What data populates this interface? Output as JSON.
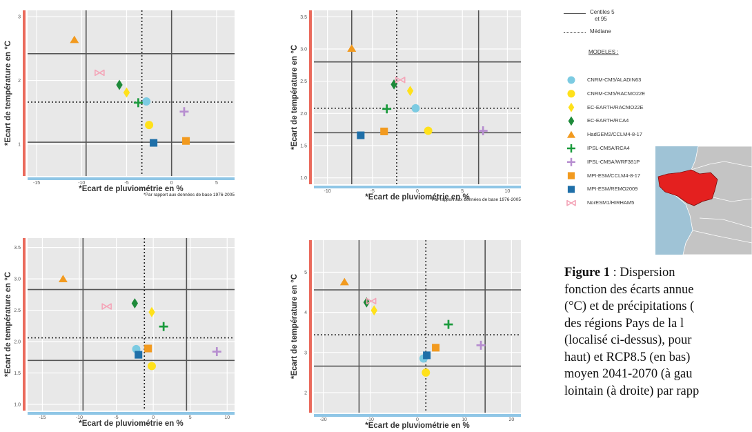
{
  "chart_data": [
    {
      "type": "scatter",
      "panel": "top-left",
      "xlabel": "*Ecart de pluviométrie en %",
      "ylabel": "*Ecart de température en °C",
      "footnote": "*Par rapport aux données de base 1976-2005",
      "xlim": [
        -16,
        7
      ],
      "ylim": [
        0.5,
        3.1
      ],
      "xticks": [
        "-15",
        "-10",
        "-5",
        "0",
        "5"
      ],
      "xtick_values": [
        -15,
        -10,
        -5,
        0,
        5
      ],
      "yticks": [
        "1",
        "2",
        "3"
      ],
      "ytick_values": [
        1,
        2,
        3
      ],
      "percentile_x": [
        -9.5,
        0
      ],
      "percentile_y": [
        1.03,
        2.42
      ],
      "median_x": -3.3,
      "median_y": 1.66,
      "points": [
        {
          "model": "CNRM-CM5/ALADIN63",
          "x": -2.8,
          "y": 1.67
        },
        {
          "model": "CNRM-CM5/RACMO22E",
          "x": -2.5,
          "y": 1.3
        },
        {
          "model": "EC-EARTH/RACMO22E",
          "x": -5.0,
          "y": 1.81
        },
        {
          "model": "EC-EARTH/RCA4",
          "x": -5.8,
          "y": 1.93
        },
        {
          "model": "HadGEM2/CCLM4-8-17",
          "x": -10.8,
          "y": 2.64
        },
        {
          "model": "IPSL-CM5A/RCA4",
          "x": -3.7,
          "y": 1.65
        },
        {
          "model": "IPSL-CM5A/WRF381P",
          "x": 1.4,
          "y": 1.51
        },
        {
          "model": "MPI-ESM/CCLM4-8-17",
          "x": 1.6,
          "y": 1.05
        },
        {
          "model": "MPI-ESM/REMO2009",
          "x": -2.0,
          "y": 1.02
        },
        {
          "model": "NorESM1/HIRHAM5",
          "x": -8.0,
          "y": 2.12
        }
      ]
    },
    {
      "type": "scatter",
      "panel": "top-right",
      "xlabel": "*Ecart de pluviométrie en %",
      "ylabel": "*Ecart de température en °C",
      "footnote": "*Par rapport aux données de base 1976-2005",
      "xlim": [
        -11.5,
        11.5
      ],
      "ylim": [
        0.9,
        3.6
      ],
      "xticks": [
        "-10",
        "-5",
        "0",
        "5",
        "10"
      ],
      "xtick_values": [
        -10,
        -5,
        0,
        5,
        10
      ],
      "yticks": [
        "1.0",
        "1.5",
        "2.0",
        "2.5",
        "3.0",
        "3.5"
      ],
      "ytick_values": [
        1.0,
        1.5,
        2.0,
        2.5,
        3.0,
        3.5
      ],
      "percentile_x": [
        -7.3,
        6.8
      ],
      "percentile_y": [
        1.7,
        2.8
      ],
      "median_x": -2.3,
      "median_y": 2.08,
      "points": [
        {
          "model": "CNRM-CM5/ALADIN63",
          "x": -0.2,
          "y": 2.08
        },
        {
          "model": "CNRM-CM5/RACMO22E",
          "x": 1.2,
          "y": 1.73
        },
        {
          "model": "EC-EARTH/RACMO22E",
          "x": -0.8,
          "y": 2.35
        },
        {
          "model": "EC-EARTH/RCA4",
          "x": -2.6,
          "y": 2.45
        },
        {
          "model": "HadGEM2/CCLM4-8-17",
          "x": -7.3,
          "y": 3.01
        },
        {
          "model": "IPSL-CM5A/RCA4",
          "x": -3.4,
          "y": 2.07
        },
        {
          "model": "IPSL-CM5A/WRF381P",
          "x": 7.3,
          "y": 1.73
        },
        {
          "model": "MPI-ESM/CCLM4-8-17",
          "x": -3.7,
          "y": 1.72
        },
        {
          "model": "MPI-ESM/REMO2009",
          "x": -6.3,
          "y": 1.66
        },
        {
          "model": "NorESM1/HIRHAM5",
          "x": -1.9,
          "y": 2.52
        }
      ]
    },
    {
      "type": "scatter",
      "panel": "bottom-left",
      "xlabel": "*Ecart de pluviométrie en %",
      "ylabel": "*Ecart de température en °C",
      "xlim": [
        -17,
        11
      ],
      "ylim": [
        0.9,
        3.65
      ],
      "xticks": [
        "-15",
        "-10",
        "-5",
        "0",
        "5",
        "10"
      ],
      "xtick_values": [
        -15,
        -10,
        -5,
        0,
        5,
        10
      ],
      "yticks": [
        "1.0",
        "1.5",
        "2.0",
        "2.5",
        "3.0",
        "3.5"
      ],
      "ytick_values": [
        1.0,
        1.5,
        2.0,
        2.5,
        3.0,
        3.5
      ],
      "percentile_x": [
        -9.5,
        4.5
      ],
      "percentile_y": [
        1.7,
        2.83
      ],
      "median_x": -1.2,
      "median_y": 2.06,
      "points": [
        {
          "model": "CNRM-CM5/ALADIN63",
          "x": -2.3,
          "y": 1.88
        },
        {
          "model": "CNRM-CM5/RACMO22E",
          "x": -0.2,
          "y": 1.61
        },
        {
          "model": "EC-EARTH/RACMO22E",
          "x": -0.2,
          "y": 2.47
        },
        {
          "model": "EC-EARTH/RCA4",
          "x": -2.5,
          "y": 2.61
        },
        {
          "model": "HadGEM2/CCLM4-8-17",
          "x": -12.2,
          "y": 3.0
        },
        {
          "model": "IPSL-CM5A/RCA4",
          "x": 1.4,
          "y": 2.24
        },
        {
          "model": "IPSL-CM5A/WRF381P",
          "x": 8.6,
          "y": 1.84
        },
        {
          "model": "MPI-ESM/CCLM4-8-17",
          "x": -0.7,
          "y": 1.89
        },
        {
          "model": "MPI-ESM/REMO2009",
          "x": -2.0,
          "y": 1.79
        },
        {
          "model": "NorESM1/HIRHAM5",
          "x": -6.3,
          "y": 2.56
        }
      ]
    },
    {
      "type": "scatter",
      "panel": "bottom-right",
      "xlabel": "*Ecart de pluviométrie en %",
      "ylabel": "*Ecart de température en °C",
      "xlim": [
        -22,
        22
      ],
      "ylim": [
        1.5,
        5.8
      ],
      "xticks": [
        "-20",
        "-10",
        "0",
        "10",
        "20"
      ],
      "xtick_values": [
        -20,
        -10,
        0,
        10,
        20
      ],
      "yticks": [
        "2",
        "3",
        "4",
        "5"
      ],
      "ytick_values": [
        2,
        3,
        4,
        5
      ],
      "percentile_x": [
        -12.4,
        14.4
      ],
      "percentile_y": [
        2.66,
        4.56
      ],
      "median_x": 1.8,
      "median_y": 3.44,
      "points": [
        {
          "model": "CNRM-CM5/ALADIN63",
          "x": 1.3,
          "y": 2.85
        },
        {
          "model": "CNRM-CM5/RACMO22E",
          "x": 1.8,
          "y": 2.5
        },
        {
          "model": "EC-EARTH/RACMO22E",
          "x": -9.2,
          "y": 4.05
        },
        {
          "model": "EC-EARTH/RCA4",
          "x": -10.8,
          "y": 4.25
        },
        {
          "model": "HadGEM2/CCLM4-8-17",
          "x": -15.5,
          "y": 4.76
        },
        {
          "model": "IPSL-CM5A/RCA4",
          "x": 6.6,
          "y": 3.7
        },
        {
          "model": "IPSL-CM5A/WRF381P",
          "x": 13.5,
          "y": 3.18
        },
        {
          "model": "MPI-ESM/CCLM4-8-17",
          "x": 3.9,
          "y": 3.12
        },
        {
          "model": "MPI-ESM/REMO2009",
          "x": 2.0,
          "y": 2.93
        },
        {
          "model": "NorESM1/HIRHAM5",
          "x": -9.8,
          "y": 4.28
        }
      ]
    }
  ],
  "legend": {
    "centiles_label_1": "Centiles 5",
    "centiles_label_2": "et 95",
    "median_label": "Médiane",
    "models_title": "MODELES :",
    "models": [
      {
        "name": "CNRM-CM5/ALADIN63",
        "shape": "circle",
        "color": "#7ccbe2"
      },
      {
        "name": "CNRM-CM5/RACMO22E",
        "shape": "circle",
        "color": "#ffe11a"
      },
      {
        "name": "EC-EARTH/RACMO22E",
        "shape": "diamond",
        "color": "#ffe11a"
      },
      {
        "name": "EC-EARTH/RCA4",
        "shape": "diamond",
        "color": "#1e8a3a"
      },
      {
        "name": "HadGEM2/CCLM4-8-17",
        "shape": "triangle",
        "color": "#f29a1f"
      },
      {
        "name": "IPSL-CM5A/RCA4",
        "shape": "plus",
        "color": "#1a9a3c"
      },
      {
        "name": "IPSL-CM5A/WRF381P",
        "shape": "plus",
        "color": "#b78ed0"
      },
      {
        "name": "MPI-ESM/CCLM4-8-17",
        "shape": "square",
        "color": "#f29a1f"
      },
      {
        "name": "MPI-ESM/REMO2009",
        "shape": "square",
        "color": "#1f6fa8"
      },
      {
        "name": "NorESM1/HIRHAM5",
        "shape": "bowtie",
        "color": "#f4a5b8"
      }
    ]
  },
  "caption": {
    "label": "Figure 1",
    "text": " : Dispersion\nfonction des écarts annue\n(°C) et de précipitations (\ndes régions Pays de la l\n(localisé ci-dessus), pour\nhaut) et RCP8.5 (en bas)\nmoyen 2041-2070 (à gau\nlointain (à droite) par rapp"
  },
  "colors": {
    "panel_bg": "#e8e8e8",
    "grid": "#ffffff",
    "percentile_line": "#555555",
    "y_axis_bar": "#ea6a5c",
    "x_axis_bar": "#8fc6e6",
    "map_region": "#e4201f",
    "map_land": "#c4c4c4",
    "map_sea": "#9fc3d6"
  }
}
